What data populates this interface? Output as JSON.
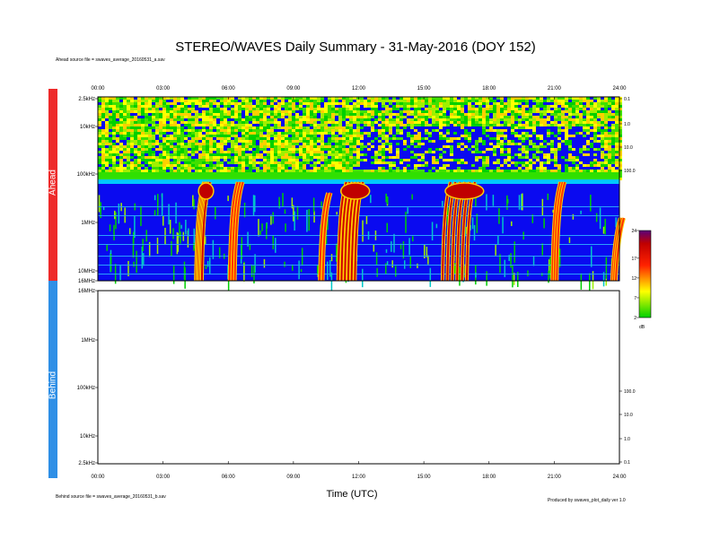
{
  "header": {
    "title": "STEREO/WAVES Daily Summary - 31-May-2016 (DOY 152)",
    "ahead_source": "Ahead source file = swaves_average_20160531_a.sav",
    "behind_source": "Behind source file = swaves_average_20160531_b.sav",
    "credit": "Produced by swaves_plot_daily  ver 1.0"
  },
  "sidebar": {
    "ahead_label": "Ahead",
    "behind_label": "Behind",
    "ahead_color": "#ee2a2a",
    "behind_color": "#2e8fe6"
  },
  "colorbar": {
    "ticks": [
      "24",
      "17",
      "12",
      "7",
      "2"
    ],
    "unit": "dB",
    "range": [
      2,
      24
    ]
  },
  "chart_data": [
    {
      "type": "heatmap",
      "panel": "Ahead",
      "xlabel": "",
      "x_ticks": [
        "00:00",
        "03:00",
        "06:00",
        "09:00",
        "12:00",
        "15:00",
        "18:00",
        "21:00",
        "24:00"
      ],
      "y_ticks": [
        "2.5kHz",
        "10kHz",
        "100kHz",
        "1MHz",
        "10MHz",
        "16MHz"
      ],
      "right_ticks": [
        "0.1",
        "1.0",
        "10.0",
        "100.0"
      ],
      "x_range_hours": [
        0,
        24
      ],
      "color_range_db": [
        2,
        24
      ],
      "bursts": [
        {
          "start": 4.55,
          "end": 4.95,
          "top_freq": "~700 kHz",
          "intensity": "strong"
        },
        {
          "start": 6.1,
          "end": 6.45,
          "top_freq": "~700 kHz",
          "intensity": "medium"
        },
        {
          "start": 10.25,
          "end": 10.45,
          "top_freq": "~1 MHz",
          "intensity": "weak"
        },
        {
          "start": 11.1,
          "end": 12.2,
          "top_freq": "~700 kHz",
          "intensity": "strong"
        },
        {
          "start": 15.9,
          "end": 17.5,
          "top_freq": "~700 kHz",
          "intensity": "strong"
        },
        {
          "start": 20.95,
          "end": 21.25,
          "top_freq": "~700 kHz",
          "intensity": "medium"
        },
        {
          "start": 23.7,
          "end": 23.95,
          "top_freq": "~3 MHz",
          "intensity": "medium"
        }
      ]
    },
    {
      "type": "heatmap",
      "panel": "Behind",
      "xlabel": "Time (UTC)",
      "x_ticks": [
        "00:00",
        "03:00",
        "06:00",
        "09:00",
        "12:00",
        "15:00",
        "18:00",
        "21:00",
        "24:00"
      ],
      "y_ticks": [
        "16MHz",
        "1MHz",
        "100kHz",
        "10kHz",
        "2.5kHz"
      ],
      "right_ticks": [
        "100.0",
        "10.0",
        "1.0",
        "0.1"
      ],
      "x_range_hours": [
        0,
        24
      ],
      "values": []
    }
  ]
}
